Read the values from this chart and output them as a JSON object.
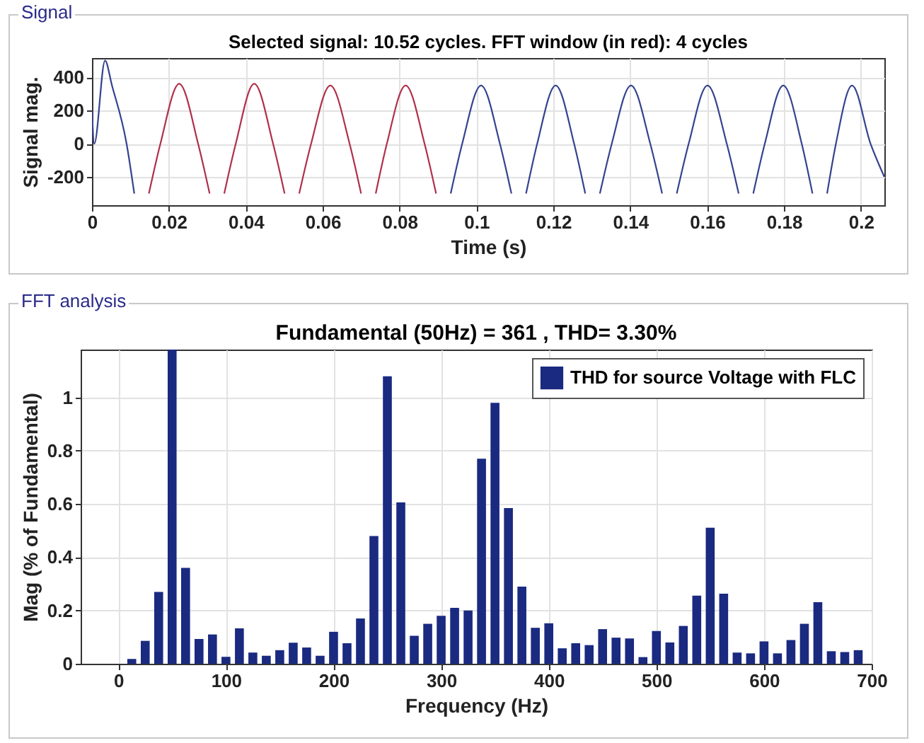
{
  "chart_data": [
    {
      "type": "line",
      "title": "Selected signal: 10.52 cycles. FFT window (in red): 4 cycles",
      "xlabel": "Time (s)",
      "ylabel": "Signal mag.",
      "annotations": [
        "Signal"
      ],
      "series": [
        {
          "color": "#35438f",
          "x": [
            0,
            0.0006,
            0.0034,
            0.0052,
            0.009,
            0.011
          ],
          "values": [
            200,
            0,
            500,
            350,
            0,
            -300
          ]
        },
        {
          "color": "#b03048",
          "x": [
            0.0148,
            0.0178,
            0.0227,
            0.0276,
            0.0306
          ],
          "values": [
            -300,
            0,
            360,
            0,
            -300
          ]
        },
        {
          "color": "#b03048",
          "x": [
            0.0344,
            0.0374,
            0.0422,
            0.0471,
            0.0501
          ],
          "values": [
            -300,
            0,
            360,
            0,
            -300
          ]
        },
        {
          "color": "#b03048",
          "x": [
            0.0539,
            0.057,
            0.062,
            0.067,
            0.07
          ],
          "values": [
            -300,
            0,
            350,
            0,
            -300
          ]
        },
        {
          "color": "#b03048",
          "x": [
            0.0738,
            0.0767,
            0.0816,
            0.0865,
            0.0895
          ],
          "values": [
            -300,
            0,
            350,
            0,
            -300
          ]
        },
        {
          "color": "#35438f",
          "x": [
            0.0933,
            0.0963,
            0.1012,
            0.1061,
            0.1091
          ],
          "values": [
            -300,
            0,
            350,
            0,
            -300
          ]
        },
        {
          "color": "#35438f",
          "x": [
            0.1129,
            0.1158,
            0.1206,
            0.1254,
            0.1283
          ],
          "values": [
            -300,
            0,
            350,
            0,
            -300
          ]
        },
        {
          "color": "#35438f",
          "x": [
            0.1321,
            0.1352,
            0.1402,
            0.1452,
            0.1483
          ],
          "values": [
            -300,
            0,
            350,
            0,
            -300
          ]
        },
        {
          "color": "#35438f",
          "x": [
            0.1521,
            0.1552,
            0.1601,
            0.1651,
            0.1682
          ],
          "values": [
            -300,
            0,
            350,
            0,
            -300
          ]
        },
        {
          "color": "#35438f",
          "x": [
            0.172,
            0.175,
            0.1798,
            0.1846,
            0.1874
          ],
          "values": [
            -300,
            0,
            350,
            0,
            -300
          ]
        },
        {
          "color": "#35438f",
          "x": [
            0.1912,
            0.1935,
            0.1977,
            0.2025,
            0.2061
          ],
          "values": [
            -300,
            0,
            350,
            0,
            -200
          ]
        }
      ],
      "xlim": [
        0,
        0.2061
      ],
      "xticks": [
        0,
        0.02,
        0.04,
        0.06,
        0.08,
        0.1,
        0.12,
        0.14,
        0.16,
        0.18,
        0.2
      ],
      "ylim": [
        -370,
        515
      ],
      "yticks": [
        -200,
        0,
        200,
        400
      ],
      "grid": true
    },
    {
      "type": "bar",
      "title": "Fundamental (50Hz) = 361 , THD= 3.30%",
      "xlabel": "Frequency (Hz)",
      "ylabel": "Mag (% of Fundamental)",
      "annotations": [
        "FFT analysis"
      ],
      "x": [
        12.5,
        25,
        37.5,
        50,
        62.5,
        75,
        87.5,
        100,
        112.5,
        125,
        137.5,
        150,
        162.5,
        175,
        187.5,
        200,
        212.5,
        225,
        237.5,
        250,
        262.5,
        275,
        287.5,
        300,
        312.5,
        325,
        337.5,
        350,
        362.5,
        375,
        387.5,
        400,
        412.5,
        425,
        437.5,
        450,
        462.5,
        475,
        487.5,
        500,
        512.5,
        525,
        537.5,
        550,
        562.5,
        575,
        587.5,
        600,
        612.5,
        625,
        637.5,
        650,
        662.5,
        675,
        687.5
      ],
      "series": [
        {
          "name": "THD for source Voltage with FLC",
          "color": "#1a2a80",
          "values": [
            0.018,
            0.086,
            0.27,
            1.18,
            0.36,
            0.093,
            0.11,
            0.026,
            0.133,
            0.042,
            0.03,
            0.051,
            0.079,
            0.061,
            0.03,
            0.12,
            0.077,
            0.17,
            0.48,
            1.08,
            0.606,
            0.105,
            0.15,
            0.18,
            0.21,
            0.2,
            0.77,
            0.98,
            0.585,
            0.29,
            0.135,
            0.152,
            0.058,
            0.077,
            0.07,
            0.13,
            0.098,
            0.095,
            0.025,
            0.123,
            0.08,
            0.142,
            0.256,
            0.511,
            0.263,
            0.042,
            0.039,
            0.084,
            0.039,
            0.089,
            0.15,
            0.231,
            0.047,
            0.044,
            0.051
          ]
        }
      ],
      "xlim": [
        -35,
        700
      ],
      "xticks": [
        0,
        100,
        200,
        300,
        400,
        500,
        600,
        700
      ],
      "ylim": [
        0,
        1.18
      ],
      "yticks": [
        0,
        0.2,
        0.4,
        0.6,
        0.8,
        1
      ],
      "grid": true,
      "legend": "top right"
    }
  ]
}
